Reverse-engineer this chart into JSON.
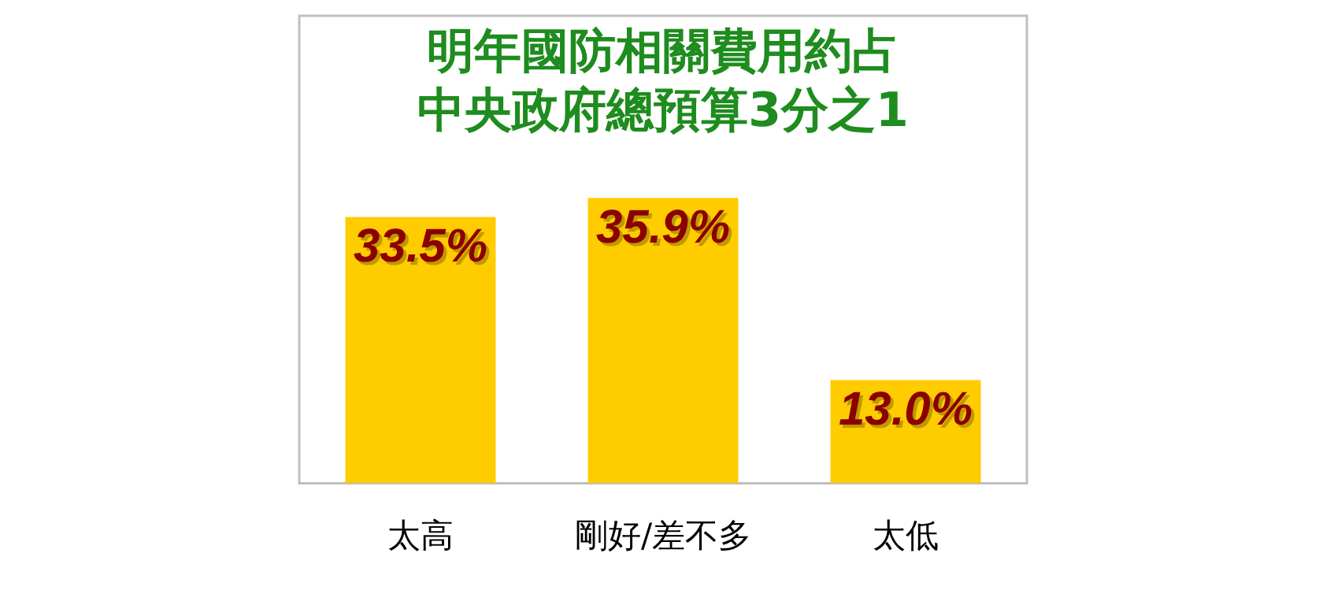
{
  "chart_data": {
    "type": "bar",
    "title": "明年國防相關費用約占中央政府總預算3分之1",
    "categories": [
      "太高",
      "剛好/差不多",
      "太低"
    ],
    "values": [
      33.5,
      35.9,
      13.0
    ],
    "value_labels": [
      "33.5%",
      "35.9%",
      "13.0%"
    ],
    "color": "#ffcc00",
    "grid": false,
    "legend": false
  }
}
